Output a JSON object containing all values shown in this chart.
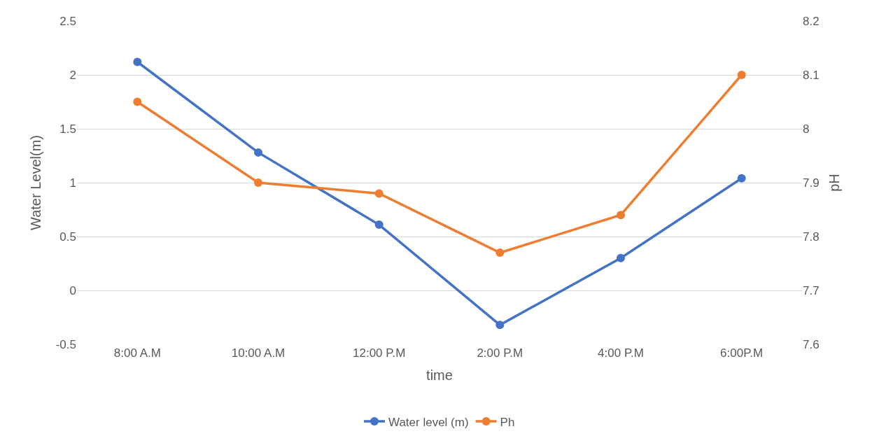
{
  "chart_data": {
    "type": "line",
    "xlabel": "time",
    "ylabel": "Water Level(m)",
    "y2label": "pH",
    "categories": [
      "8:00 A.M",
      "10:00 A.M",
      "12:00 P.M",
      "2:00 P.M",
      "4:00 P.M",
      "6:00P.M"
    ],
    "series": [
      {
        "name": "Water level (m)",
        "color": "#4472c4",
        "values": [
          2.12,
          1.28,
          0.61,
          -0.32,
          0.3,
          1.04
        ]
      },
      {
        "name": "Ph",
        "color": "#ed7d31",
        "axis": "y2",
        "values": [
          8.05,
          7.9,
          7.88,
          7.77,
          7.84,
          8.1
        ]
      }
    ],
    "ylim": [
      -0.5,
      2.5
    ],
    "yticks": [
      -0.5,
      0,
      0.5,
      1,
      1.5,
      2,
      2.5
    ],
    "y2lim": [
      7.6,
      8.2
    ],
    "y2ticks": [
      7.6,
      7.7,
      7.8,
      7.9,
      8,
      8.1,
      8.2
    ],
    "grid": "y",
    "legend": "bottom",
    "marker": "circle",
    "line_style": "solid"
  }
}
